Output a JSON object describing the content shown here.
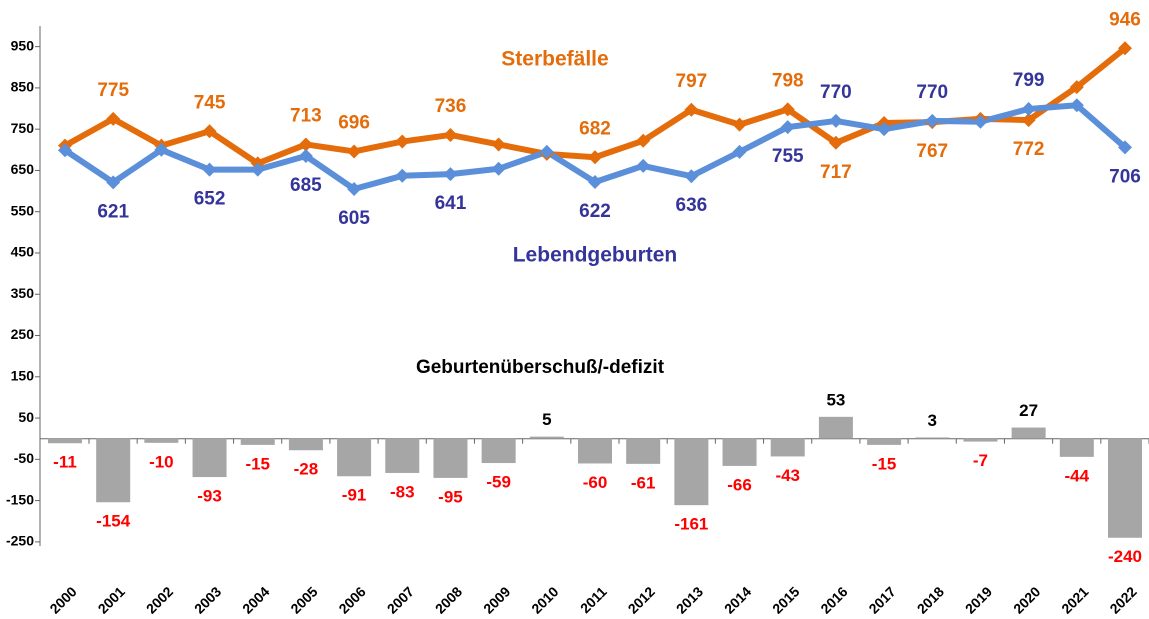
{
  "chart_data": {
    "type": "line",
    "x": [
      2000,
      2001,
      2002,
      2003,
      2004,
      2005,
      2006,
      2007,
      2008,
      2009,
      2010,
      2011,
      2012,
      2013,
      2014,
      2015,
      2016,
      2017,
      2018,
      2019,
      2020,
      2021,
      2022
    ],
    "xticks": [
      2000,
      2001,
      2002,
      2003,
      2004,
      2005,
      2006,
      2007,
      2008,
      2009,
      2010,
      2011,
      2012,
      2013,
      2014,
      2015,
      2016,
      2017,
      2018,
      2019,
      2020,
      2021,
      2022
    ],
    "ylim": [
      -260,
      1000
    ],
    "yticks": [
      -250,
      -150,
      -50,
      50,
      150,
      250,
      350,
      450,
      550,
      650,
      750,
      850,
      950
    ],
    "grid": false,
    "series": [
      {
        "name": "Sterbefälle",
        "color": "#e46c0a",
        "label_color": "#e46c0a",
        "values": [
          710,
          775,
          710,
          745,
          667,
          713,
          696,
          720,
          736,
          713,
          690,
          682,
          722,
          797,
          761,
          798,
          717,
          765,
          767,
          775,
          772,
          852,
          946
        ],
        "value_labels": [
          null,
          "775",
          null,
          "745",
          null,
          "713",
          "696",
          null,
          "736",
          null,
          null,
          "682",
          null,
          "797",
          null,
          "798",
          "717",
          null,
          "767",
          null,
          "772",
          null,
          "946"
        ]
      },
      {
        "name": "Lebendgeburten",
        "color": "#5b8fd9",
        "label_color": "#34349a",
        "values": [
          699,
          621,
          700,
          652,
          652,
          685,
          605,
          637,
          641,
          654,
          695,
          622,
          661,
          636,
          695,
          755,
          770,
          750,
          770,
          768,
          799,
          808,
          706
        ],
        "value_labels": [
          null,
          "621",
          null,
          "652",
          null,
          "685",
          "605",
          null,
          "641",
          null,
          null,
          "622",
          null,
          "636",
          null,
          "755",
          "770",
          null,
          "770",
          null,
          "799",
          null,
          "706"
        ]
      }
    ],
    "bars": {
      "name": "Geburtenüberschuß/-defizit",
      "color": "#a6a6a6",
      "negative_label_color": "#ff0000",
      "positive_label_color": "#000000",
      "values": [
        -11,
        -154,
        -10,
        -93,
        -15,
        -28,
        -91,
        -83,
        -95,
        -59,
        5,
        -60,
        -61,
        -161,
        -66,
        -43,
        53,
        -15,
        3,
        -7,
        27,
        -44,
        -240
      ]
    }
  }
}
